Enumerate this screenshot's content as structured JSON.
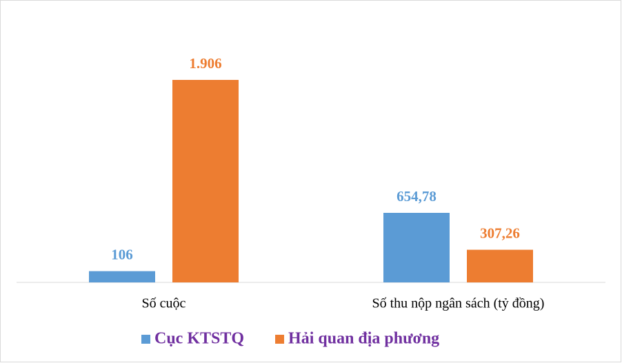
{
  "chart_data": {
    "type": "bar",
    "categories": [
      "Số cuộc",
      "Số thu nộp ngân sách (tỷ đồng)"
    ],
    "series": [
      {
        "name": "Cục KTSTQ",
        "color": "#5b9bd5",
        "values": [
          106,
          654.78
        ],
        "value_labels": [
          "106",
          "654,78"
        ]
      },
      {
        "name": "Hải quan địa phương",
        "color": "#ed7d31",
        "values": [
          1906,
          307.26
        ],
        "value_labels": [
          "1.906",
          "307,26"
        ]
      }
    ],
    "ylim": [
      0,
      2000
    ],
    "legend": "bottom"
  }
}
